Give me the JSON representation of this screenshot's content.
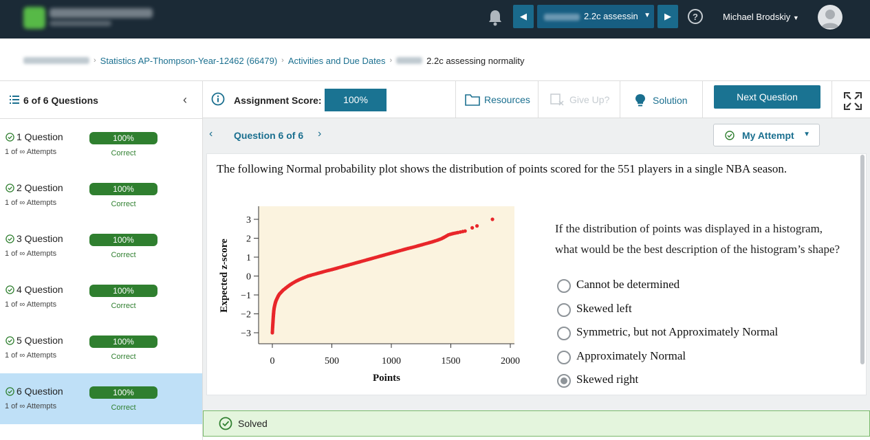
{
  "topbar": {
    "assignment_select": "2.2c assessin",
    "user_name": "Michael Brodskiy",
    "prev_glyph": "◀",
    "next_glyph": "▶",
    "help_glyph": "?"
  },
  "breadcrumb": {
    "course": "Statistics AP-Thompson-Year-12462 (66479)",
    "activities": "Activities and Due Dates",
    "current": "2.2c assessing normality"
  },
  "sidebar": {
    "title": "6 of 6 Questions",
    "items": [
      {
        "name": "1 Question",
        "attempts": "1 of ∞ Attempts",
        "score": "100%",
        "status": "Correct"
      },
      {
        "name": "2 Question",
        "attempts": "1 of ∞ Attempts",
        "score": "100%",
        "status": "Correct"
      },
      {
        "name": "3 Question",
        "attempts": "1 of ∞ Attempts",
        "score": "100%",
        "status": "Correct"
      },
      {
        "name": "4 Question",
        "attempts": "1 of ∞ Attempts",
        "score": "100%",
        "status": "Correct"
      },
      {
        "name": "5 Question",
        "attempts": "1 of ∞ Attempts",
        "score": "100%",
        "status": "Correct"
      },
      {
        "name": "6 Question",
        "attempts": "1 of ∞ Attempts",
        "score": "100%",
        "status": "Correct"
      }
    ]
  },
  "toolbar": {
    "score_label": "Assignment Score:",
    "score_value": "100%",
    "resources": "Resources",
    "give_up": "Give Up?",
    "solution": "Solution",
    "next_question": "Next Question"
  },
  "question": {
    "nav_label": "Question 6 of 6",
    "attempt_label": "My Attempt",
    "text": "The following Normal probability plot shows the distribution of points scored for the 551 players in a single NBA season.",
    "prompt": "If the distribution of points was displayed in a histogram, what would be the best description of the histogram’s shape?",
    "options": [
      "Cannot be determined",
      "Skewed left",
      "Symmetric, but not Approximately Normal",
      "Approximately Normal",
      "Skewed right"
    ],
    "selected_index": 4
  },
  "solved_label": "Solved",
  "colors": {
    "topbar": "#1b2a36",
    "accent": "#1a7392",
    "correct": "#2f7f2f",
    "active_row": "#bfe0f7",
    "plot_bg": "#fbf3df",
    "points": "#e8262a"
  },
  "chart_data": {
    "type": "scatter",
    "xlabel": "Points",
    "ylabel": "Expected z-score",
    "xlim": [
      0,
      2000
    ],
    "ylim": [
      -3,
      3
    ],
    "x_ticks": [
      "0",
      "500",
      "1000",
      "1500",
      "2000"
    ],
    "y_ticks": [
      "3",
      "2",
      "1",
      "0",
      "−1",
      "−2",
      "−3"
    ],
    "series": [
      {
        "x": [
          0,
          2,
          4,
          6,
          8,
          10,
          12,
          15,
          20,
          25,
          30,
          40,
          50,
          60,
          75,
          90,
          110,
          130,
          150,
          170,
          200,
          230,
          260,
          300,
          340,
          380,
          420,
          460,
          500,
          540,
          580,
          620,
          660,
          700,
          740,
          780,
          820,
          860,
          900,
          940,
          980,
          1020,
          1060,
          1100,
          1140,
          1180,
          1220,
          1260,
          1300,
          1340,
          1380,
          1420,
          1450,
          1480,
          1520,
          1560,
          1620,
          1680,
          1720,
          1850
        ],
        "y": [
          -3.0,
          -2.75,
          -2.55,
          -2.35,
          -2.15,
          -2.0,
          -1.85,
          -1.7,
          -1.55,
          -1.42,
          -1.32,
          -1.18,
          -1.05,
          -0.95,
          -0.85,
          -0.75,
          -0.65,
          -0.55,
          -0.46,
          -0.38,
          -0.27,
          -0.18,
          -0.1,
          0.0,
          0.07,
          0.14,
          0.21,
          0.28,
          0.34,
          0.41,
          0.48,
          0.55,
          0.62,
          0.69,
          0.76,
          0.83,
          0.9,
          0.97,
          1.04,
          1.11,
          1.18,
          1.25,
          1.32,
          1.39,
          1.46,
          1.52,
          1.59,
          1.66,
          1.73,
          1.8,
          1.88,
          1.97,
          2.07,
          2.18,
          2.25,
          2.3,
          2.38,
          2.55,
          2.65,
          3.0
        ]
      }
    ]
  }
}
